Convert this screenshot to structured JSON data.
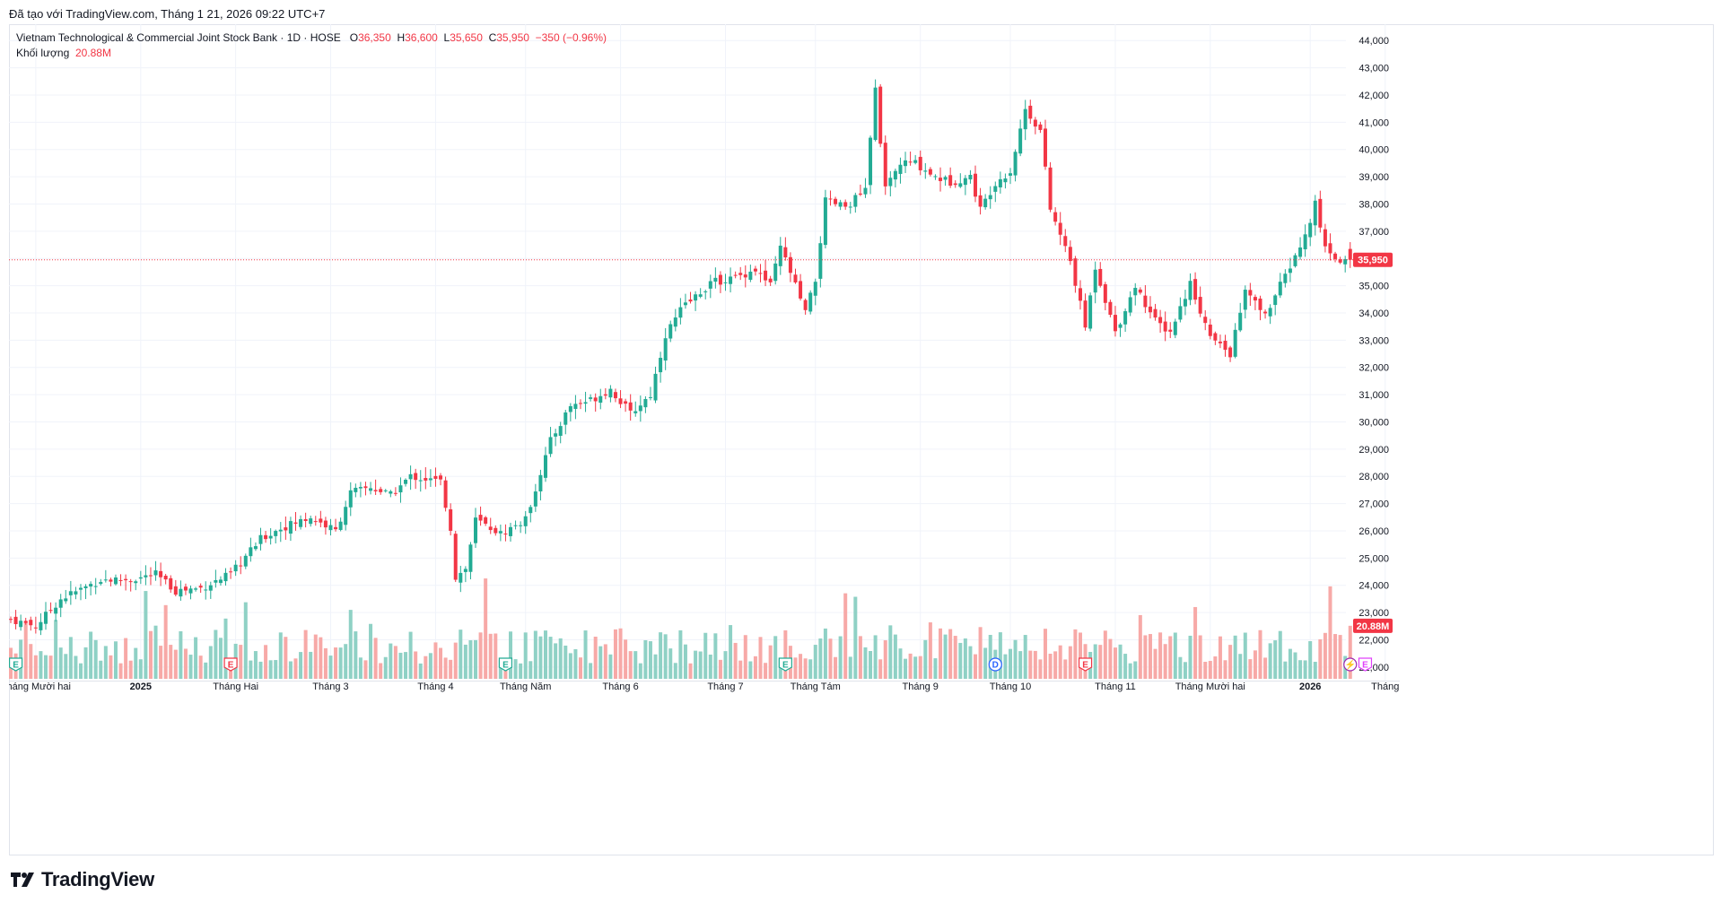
{
  "header": {
    "created_note": "Đã tạo với TradingView.com, Tháng 1 21, 2026 09:22 UTC+7"
  },
  "legend": {
    "symbol": "Vietnam Technological & Commercial Joint Stock Bank · 1D · HOSE",
    "o_label": "O",
    "o_value": "36,350",
    "h_label": "H",
    "h_value": "36,600",
    "l_label": "L",
    "l_value": "35,650",
    "c_label": "C",
    "c_value": "35,950",
    "change": "−350 (−0.96%)",
    "volume_label": "Khối lượng",
    "volume_value": "20.88M"
  },
  "footer": {
    "brand": "TradingView"
  },
  "colors": {
    "up": "#22ab94",
    "down": "#f23645",
    "up_volume": "#8fd1c5",
    "down_volume": "#f7a9a7",
    "grid": "#f0f3fa",
    "text": "#131722",
    "last_price_line": "#f23645"
  },
  "chart_data": {
    "type": "candlestick",
    "title": "Vietnam Technological & Commercial Joint Stock Bank · 1D · HOSE",
    "price_axis": {
      "ticks": [
        "21,000",
        "22,000",
        "23,000",
        "24,000",
        "25,000",
        "26,000",
        "27,000",
        "28,000",
        "29,000",
        "30,000",
        "31,000",
        "32,000",
        "33,000",
        "34,000",
        "35,000",
        "36,000",
        "37,000",
        "38,000",
        "39,000",
        "40,000",
        "41,000",
        "42,000",
        "43,000",
        "44,000"
      ],
      "ylim": [
        20500,
        44600
      ],
      "last_price": 35950,
      "last_price_label": "35,950"
    },
    "volume_axis": {
      "last_volume_label": "20.88M",
      "last_volume": 20.88,
      "unit": "M"
    },
    "x_axis": {
      "labels": [
        "Tháng Mười hai",
        "2025",
        "Tháng Hai",
        "Tháng 3",
        "Tháng 4",
        "Tháng Năm",
        "Tháng 6",
        "Tháng 7",
        "Tháng Tám",
        "Tháng 9",
        "Tháng 10",
        "Tháng 11",
        "Tháng Mười hai",
        "2026",
        "Tháng"
      ],
      "bold_labels": [
        "2025",
        "2026"
      ],
      "label_bar_index": [
        5,
        26,
        45,
        64,
        85,
        103,
        122,
        143,
        161,
        182,
        200,
        221,
        240,
        260,
        275
      ]
    },
    "events": [
      {
        "type": "E",
        "bar": 1
      },
      {
        "type": "E",
        "bar": 44
      },
      {
        "type": "E",
        "bar": 99
      },
      {
        "type": "E",
        "bar": 155
      },
      {
        "type": "D",
        "bar": 197
      },
      {
        "type": "E",
        "bar": 215
      },
      {
        "type": "⚡",
        "bar": 268
      },
      {
        "type": "E",
        "bar": 271
      }
    ],
    "ohlc_anchors": [
      [
        0,
        23300,
        22750
      ],
      [
        5,
        22400,
        22500
      ],
      [
        10,
        23500,
        23500
      ],
      [
        18,
        24200,
        24200
      ],
      [
        24,
        24000,
        24200
      ],
      [
        29,
        24500,
        24400
      ],
      [
        33,
        23700,
        23800
      ],
      [
        38,
        23800,
        23900
      ],
      [
        44,
        24300,
        24400
      ],
      [
        50,
        25300,
        25700
      ],
      [
        54,
        25900,
        26100
      ],
      [
        60,
        26200,
        26500
      ],
      [
        65,
        26100,
        26000
      ],
      [
        68,
        27200,
        27400
      ],
      [
        72,
        28000,
        27600
      ],
      [
        76,
        27300,
        27300
      ],
      [
        80,
        28000,
        28000
      ],
      [
        86,
        27600,
        27800
      ],
      [
        88,
        26700,
        26100
      ],
      [
        89,
        24000,
        24300
      ],
      [
        91,
        23000,
        24600
      ],
      [
        93,
        25600,
        26400
      ],
      [
        98,
        25600,
        25900
      ],
      [
        103,
        26100,
        26400
      ],
      [
        108,
        28600,
        29300
      ],
      [
        112,
        30200,
        30600
      ],
      [
        116,
        30300,
        30800
      ],
      [
        120,
        31700,
        31200
      ],
      [
        124,
        30200,
        30300
      ],
      [
        128,
        30700,
        31000
      ],
      [
        131,
        33000,
        33200
      ],
      [
        134,
        34100,
        34100
      ],
      [
        140,
        34900,
        35100
      ],
      [
        145,
        35200,
        35300
      ],
      [
        149,
        35400,
        35600
      ],
      [
        152,
        35000,
        35000
      ],
      [
        154,
        36300,
        36400
      ],
      [
        156,
        35200,
        35500
      ],
      [
        159,
        34000,
        34000
      ],
      [
        161,
        34000,
        35200
      ],
      [
        163,
        37100,
        38100
      ],
      [
        167,
        37800,
        37900
      ],
      [
        171,
        38000,
        38500
      ],
      [
        173,
        41200,
        42200
      ],
      [
        175,
        39800,
        38500
      ],
      [
        178,
        37900,
        39500
      ],
      [
        181,
        39600,
        39500
      ],
      [
        185,
        38400,
        39000
      ],
      [
        188,
        39100,
        38800
      ],
      [
        192,
        38000,
        39000
      ],
      [
        194,
        37800,
        37800
      ],
      [
        197,
        38600,
        38800
      ],
      [
        200,
        38800,
        39200
      ],
      [
        203,
        41500,
        41500
      ],
      [
        206,
        40800,
        40700
      ],
      [
        208,
        38300,
        37800
      ],
      [
        212,
        36400,
        35900
      ],
      [
        215,
        34700,
        33500
      ],
      [
        217,
        35500,
        35700
      ],
      [
        221,
        34200,
        33300
      ],
      [
        225,
        34900,
        35000
      ],
      [
        229,
        34300,
        33700
      ],
      [
        232,
        33300,
        33300
      ],
      [
        236,
        35000,
        35100
      ],
      [
        240,
        33400,
        33100
      ],
      [
        244,
        31500,
        32500
      ],
      [
        247,
        33400,
        34800
      ],
      [
        251,
        34100,
        33900
      ],
      [
        254,
        34500,
        35000
      ],
      [
        259,
        36300,
        36800
      ],
      [
        261,
        37900,
        38000
      ],
      [
        263,
        36500,
        36400
      ],
      [
        266,
        36000,
        35900
      ],
      [
        268,
        36350,
        35950
      ]
    ],
    "last_bar": {
      "open": 36350,
      "high": 36600,
      "low": 35650,
      "close": 35950,
      "volume_m": 20.88
    },
    "volume_ylim_m": [
      0,
      60
    ]
  }
}
